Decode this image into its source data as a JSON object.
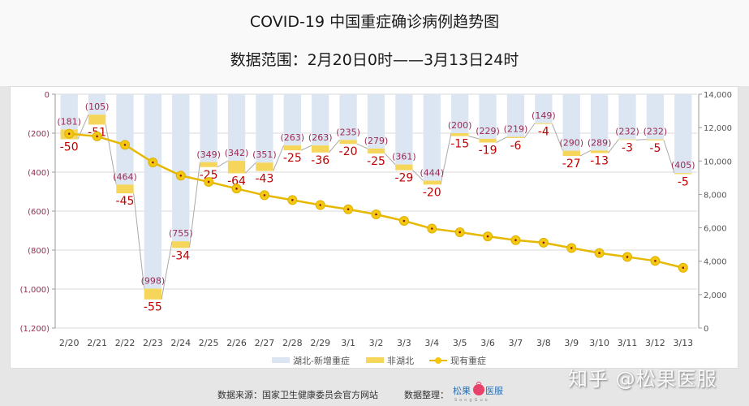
{
  "header": {
    "title": "COVID-19 中国重症确诊病例趋势图",
    "subtitle": "数据范围：2月20日0时——3月13日24时"
  },
  "legend": {
    "hubei": "湖北-新增重症",
    "non_hubei": "非湖北",
    "current": "现有重症"
  },
  "footer": {
    "source": "数据来源：国家卫生健康委员会官方网站",
    "organizer": "数据整理：",
    "logo_text": "松果医服",
    "logo_sub": "SongGuo",
    "watermark": "知乎 @松果医服"
  },
  "colors": {
    "hubei_bar": "#dce6f2",
    "non_hubei_bar": "#f5d55a",
    "line": "#e6b800",
    "marker_dot": "#8b1a1a",
    "label_red": "#c00000",
    "label_purple": "#9a2a52",
    "grid": "#d9d9d9"
  },
  "chart_data": {
    "type": "bar",
    "title": "COVID-19 中国重症确诊病例趋势图",
    "subtitle": "数据范围：2月20日0时——3月13日24时",
    "categories": [
      "2/20",
      "2/21",
      "2/22",
      "2/23",
      "2/24",
      "2/25",
      "2/26",
      "2/27",
      "2/28",
      "2/29",
      "3/1",
      "3/2",
      "3/3",
      "3/4",
      "3/5",
      "3/6",
      "3/7",
      "3/8",
      "3/9",
      "3/10",
      "3/11",
      "3/12",
      "3/13"
    ],
    "left_axis": {
      "ticks": [
        "0",
        "(200)",
        "(400)",
        "(600)",
        "(800)",
        "(1,000)",
        "(1,200)"
      ],
      "ylim": [
        -1200,
        0
      ]
    },
    "right_axis": {
      "ticks": [
        "14,000",
        "12,000",
        "10,000",
        "8,000",
        "6,000",
        "4,000",
        "2,000",
        "0"
      ],
      "ylim": [
        0,
        14000
      ]
    },
    "series": [
      {
        "name": "湖北-新增重症",
        "type": "bar",
        "axis": "left",
        "values": [
          -181,
          -105,
          -464,
          -998,
          -755,
          -349,
          -342,
          -351,
          -263,
          -263,
          -235,
          -279,
          -361,
          -444,
          -200,
          -229,
          -219,
          -149,
          -290,
          -289,
          -232,
          -232,
          -405
        ],
        "labels": [
          "(181)",
          "(105)",
          "(464)",
          "(998)",
          "(755)",
          "(349)",
          "(342)",
          "(351)",
          "(263)",
          "(263)",
          "(235)",
          "(279)",
          "(361)",
          "(444)",
          "(200)",
          "(229)",
          "(219)",
          "(149)",
          "(290)",
          "(289)",
          "(232)",
          "(232)",
          "(405)"
        ]
      },
      {
        "name": "非湖北",
        "type": "bar",
        "axis": "left",
        "stacked": true,
        "values": [
          -50,
          -51,
          -45,
          -55,
          -34,
          -25,
          -64,
          -43,
          -25,
          -36,
          -20,
          -25,
          -29,
          -20,
          -15,
          -19,
          -6,
          -4,
          -27,
          -13,
          -3,
          -5,
          -5
        ],
        "labels": [
          "-50",
          "-51",
          "-45",
          "-55",
          "-34",
          "-25",
          "-64",
          "-43",
          "-25",
          "-36",
          "-20",
          "-25",
          "-29",
          "-20",
          "-15",
          "-19",
          "-6",
          "-4",
          "-27",
          "-13",
          "-3",
          "-5",
          "-5"
        ]
      },
      {
        "name": "现有重症",
        "type": "line",
        "axis": "right",
        "values": [
          11633,
          11477,
          10968,
          9915,
          9126,
          8752,
          8346,
          7952,
          7664,
          7365,
          7110,
          6806,
          6416,
          5952,
          5737,
          5489,
          5264,
          5111,
          4794,
          4492,
          4257,
          4020,
          3610
        ]
      }
    ],
    "legend_position": "bottom",
    "grid": true
  }
}
